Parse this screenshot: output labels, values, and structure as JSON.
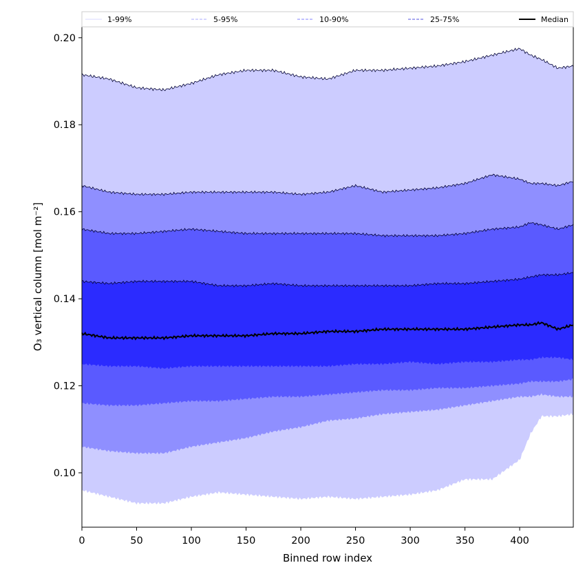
{
  "chart_data": {
    "type": "area",
    "xlabel": "Binned row index",
    "ylabel": "O₃ vertical column [mol m⁻²]",
    "xlim": [
      0,
      449
    ],
    "ylim": [
      0.0875,
      0.2025
    ],
    "x_ticks": [
      0,
      50,
      100,
      150,
      200,
      250,
      300,
      350,
      400
    ],
    "y_ticks": [
      0.1,
      0.12,
      0.14,
      0.16,
      0.18,
      0.2
    ],
    "y_tick_labels": [
      "0.10",
      "0.12",
      "0.14",
      "0.16",
      "0.18",
      "0.20"
    ],
    "x": [
      0,
      25,
      50,
      75,
      100,
      125,
      150,
      175,
      200,
      225,
      250,
      275,
      300,
      325,
      350,
      375,
      400,
      410,
      420,
      435,
      449
    ],
    "bands": [
      {
        "name": "1-99%",
        "fill": "#ccccff",
        "lower": [
          0.096,
          0.0945,
          0.093,
          0.093,
          0.0945,
          0.0955,
          0.095,
          0.0945,
          0.094,
          0.0945,
          0.094,
          0.0945,
          0.095,
          0.096,
          0.0985,
          0.0985,
          0.103,
          0.109,
          0.113,
          0.113,
          0.1135
        ],
        "upper": [
          0.1915,
          0.1905,
          0.1885,
          0.188,
          0.1895,
          0.1915,
          0.1925,
          0.1925,
          0.191,
          0.1905,
          0.1925,
          0.1925,
          0.193,
          0.1935,
          0.1945,
          0.196,
          0.1975,
          0.196,
          0.195,
          0.193,
          0.1935
        ]
      },
      {
        "name": "5-95%",
        "fill": "#8f8fff",
        "lower": [
          0.106,
          0.105,
          0.1045,
          0.1045,
          0.106,
          0.107,
          0.108,
          0.1095,
          0.1105,
          0.112,
          0.1125,
          0.1135,
          0.114,
          0.1145,
          0.1155,
          0.1165,
          0.1175,
          0.1175,
          0.118,
          0.1175,
          0.1175
        ]
      },
      {
        "name": "10-90%",
        "fill": "#5a5aff",
        "lower": [
          0.116,
          0.1155,
          0.1155,
          0.116,
          0.1165,
          0.1165,
          0.117,
          0.1175,
          0.1175,
          0.118,
          0.1185,
          0.119,
          0.119,
          0.1195,
          0.1195,
          0.12,
          0.1205,
          0.121,
          0.121,
          0.121,
          0.1215
        ]
      },
      {
        "name": "25-75%",
        "fill": "#2b2bff",
        "lower": [
          0.125,
          0.1245,
          0.1245,
          0.124,
          0.1245,
          0.1245,
          0.1245,
          0.1245,
          0.1245,
          0.1245,
          0.125,
          0.125,
          0.1255,
          0.125,
          0.1255,
          0.1255,
          0.126,
          0.126,
          0.1265,
          0.1265,
          0.126
        ]
      }
    ],
    "percentile_lines": {
      "p95": [
        0.166,
        0.1645,
        0.164,
        0.164,
        0.1645,
        0.1645,
        0.1645,
        0.1645,
        0.164,
        0.1645,
        0.166,
        0.1645,
        0.165,
        0.1655,
        0.1665,
        0.1685,
        0.1675,
        0.1665,
        0.1665,
        0.166,
        0.167
      ],
      "p90": [
        0.156,
        0.155,
        0.155,
        0.1555,
        0.156,
        0.1555,
        0.155,
        0.155,
        0.155,
        0.155,
        0.155,
        0.1545,
        0.1545,
        0.1545,
        0.155,
        0.156,
        0.1565,
        0.1575,
        0.157,
        0.156,
        0.157
      ],
      "p75": [
        0.144,
        0.1435,
        0.144,
        0.144,
        0.144,
        0.143,
        0.143,
        0.1435,
        0.143,
        0.143,
        0.143,
        0.143,
        0.143,
        0.1435,
        0.1435,
        0.144,
        0.1445,
        0.145,
        0.1455,
        0.1455,
        0.146
      ],
      "median": [
        0.132,
        0.131,
        0.131,
        0.131,
        0.1315,
        0.1315,
        0.1315,
        0.132,
        0.132,
        0.1325,
        0.1325,
        0.133,
        0.133,
        0.133,
        0.133,
        0.1335,
        0.134,
        0.134,
        0.1345,
        0.133,
        0.134
      ]
    },
    "legend": {
      "placement": "top",
      "entries": [
        {
          "label": "1-99%",
          "color": "#d8d8ff",
          "style": "solid"
        },
        {
          "label": "5-95%",
          "color": "#a8a8ff",
          "style": "dashed"
        },
        {
          "label": "10-90%",
          "color": "#8080ff",
          "style": "dashed"
        },
        {
          "label": "25-75%",
          "color": "#5050e0",
          "style": "dashed"
        },
        {
          "label": "Median",
          "color": "#000000",
          "style": "solid"
        }
      ]
    },
    "grid": false
  }
}
